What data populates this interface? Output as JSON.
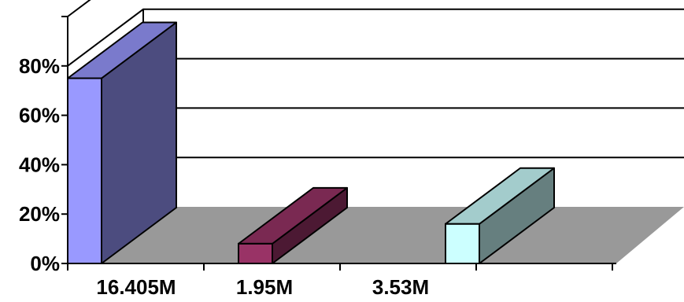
{
  "chart_data": {
    "type": "bar",
    "three_d": true,
    "categories": [
      "16.405M",
      "1.95M",
      "3.53M"
    ],
    "values": [
      75,
      8,
      16
    ],
    "yticks": [
      "0%",
      "20%",
      "40%",
      "60%",
      "80%"
    ],
    "ylim": [
      0,
      100
    ],
    "grid": true,
    "legend": "none",
    "colors": [
      {
        "front": "#9999ff",
        "side": "#4c4c7f",
        "top": "#7a7acc"
      },
      {
        "front": "#993366",
        "side": "#4c1933",
        "top": "#7a2952"
      },
      {
        "front": "#ccffff",
        "side": "#667f7f",
        "top": "#a3cccc"
      }
    ],
    "floor_color": "#999999",
    "wall_color": "#ffffff"
  }
}
